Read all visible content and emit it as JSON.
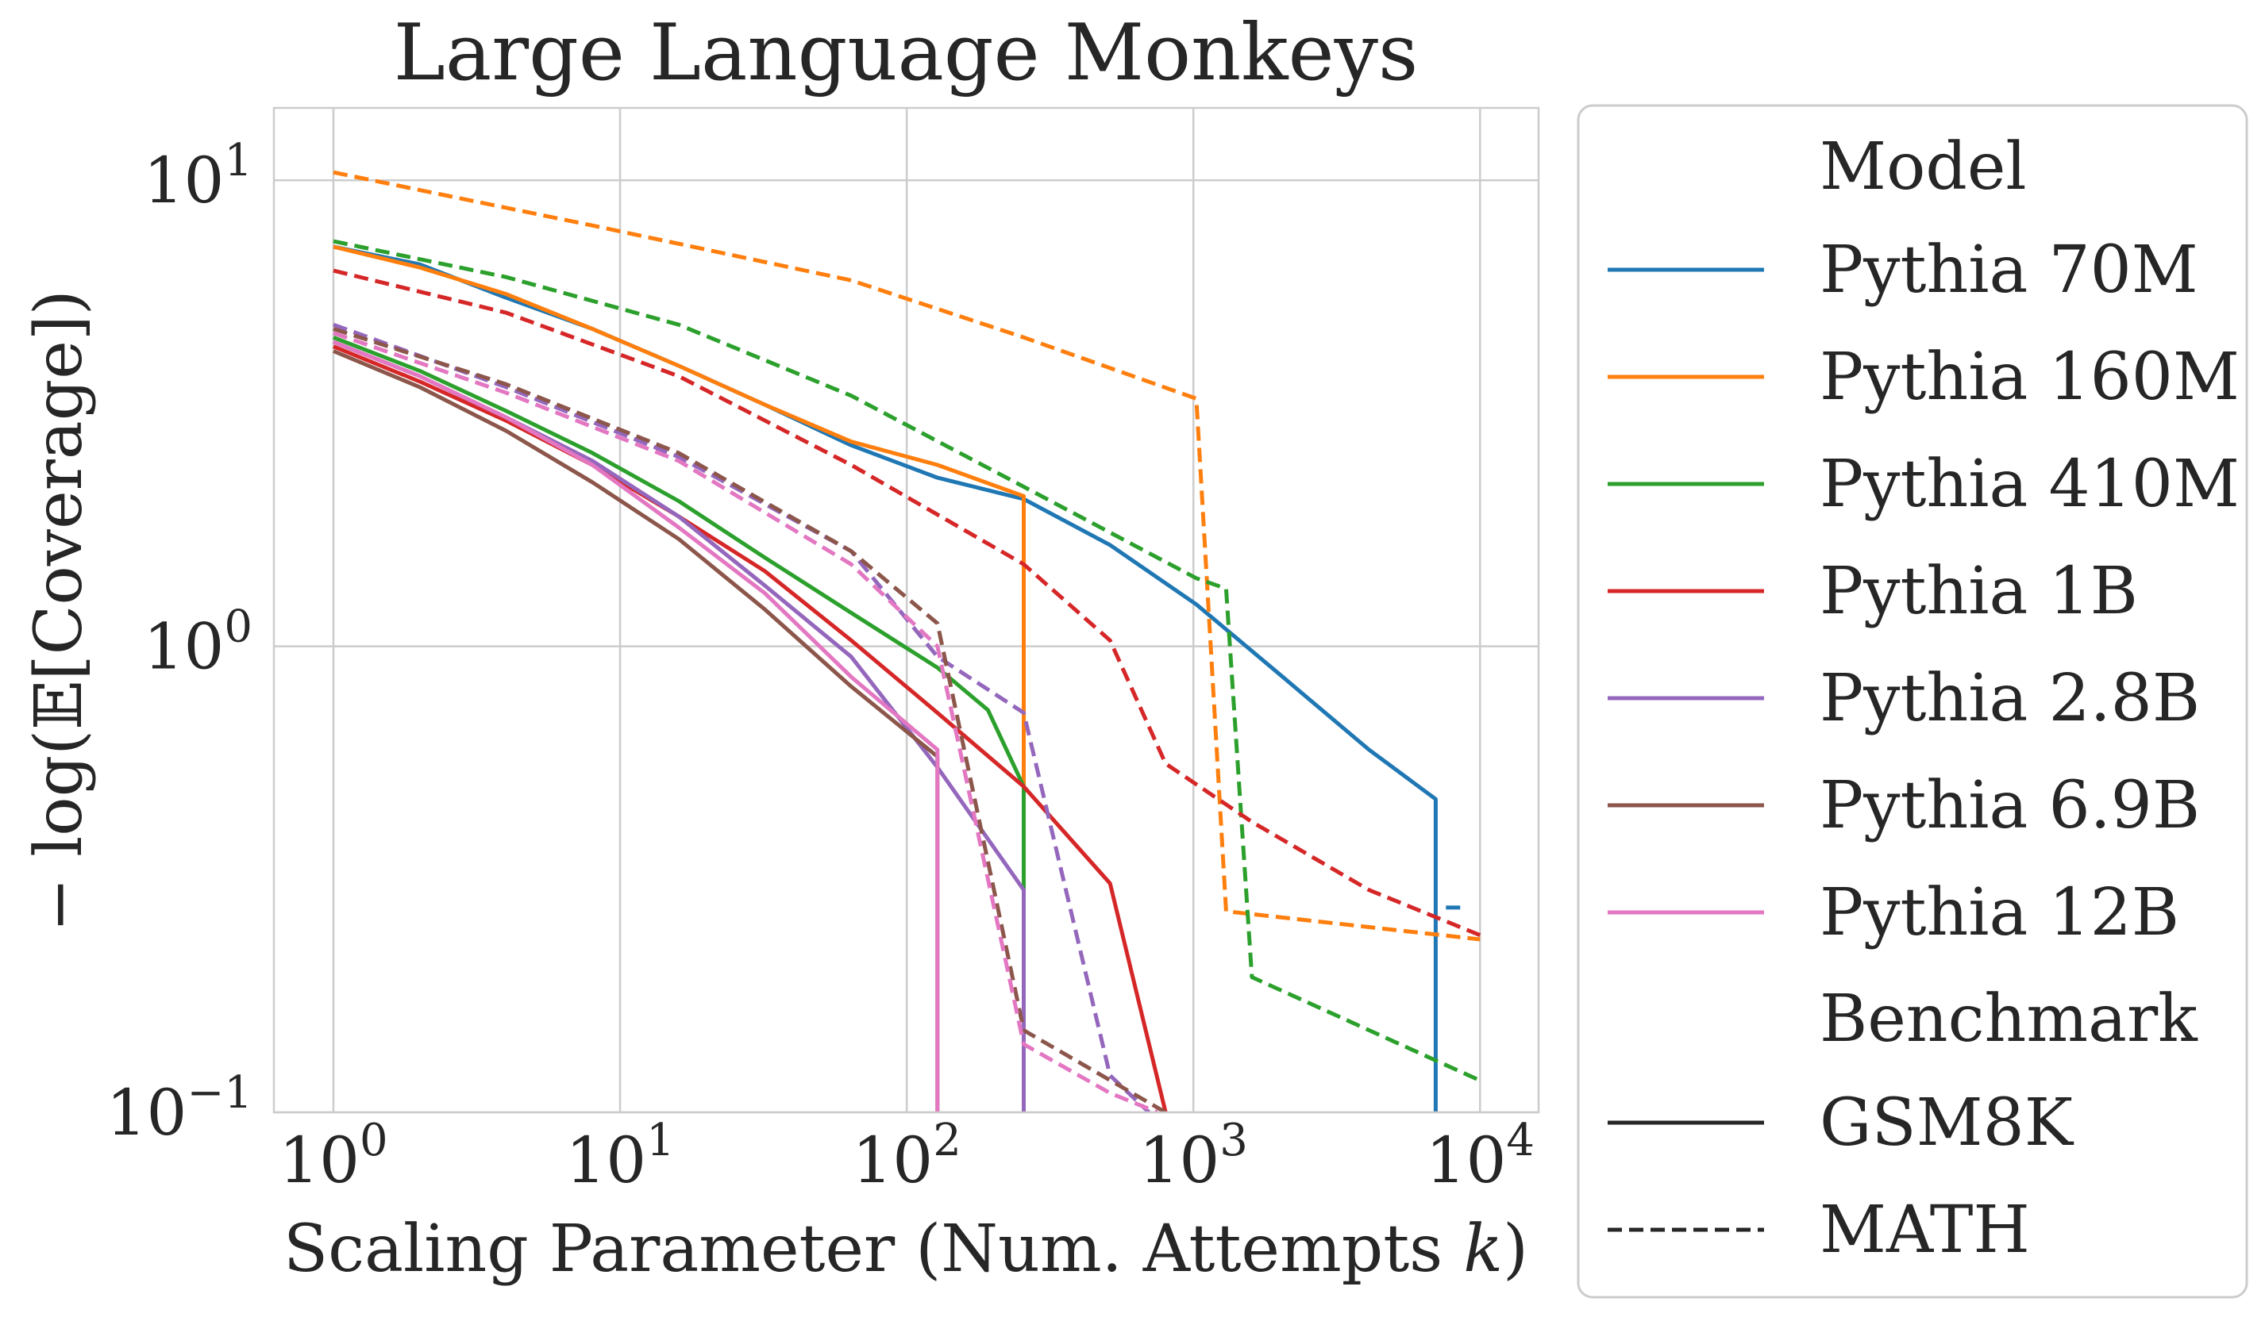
{
  "chart_data": {
    "type": "line",
    "title": "Large Language Monkeys",
    "xlabel": "Scaling Parameter (Num. Attempts k)",
    "xlabel_parts": {
      "main": "Scaling Parameter (Num. Attempts ",
      "var": "k",
      "close": ")"
    },
    "ylabel": "− log(𝔼[Coverage])",
    "xscale": "log",
    "yscale": "log",
    "xlim": [
      0.62,
      16000
    ],
    "ylim": [
      0.1,
      14.3
    ],
    "x_ticks": [
      {
        "value": 1,
        "base": "10",
        "exp": "0"
      },
      {
        "value": 10,
        "base": "10",
        "exp": "1"
      },
      {
        "value": 100,
        "base": "10",
        "exp": "2"
      },
      {
        "value": 1000,
        "base": "10",
        "exp": "3"
      },
      {
        "value": 10000,
        "base": "10",
        "exp": "4"
      }
    ],
    "y_ticks": [
      {
        "value": 0.1,
        "base": "10",
        "exp": "−1"
      },
      {
        "value": 1,
        "base": "10",
        "exp": "0"
      },
      {
        "value": 10,
        "base": "10",
        "exp": "1"
      }
    ],
    "grid": true,
    "legend_position": "outside-right",
    "legend": {
      "model_header": "Model",
      "benchmark_header": "Benchmark",
      "benchmarks": [
        {
          "name": "GSM8K",
          "style": "solid"
        },
        {
          "name": "MATH",
          "style": "dashed"
        }
      ]
    },
    "series": [
      {
        "model": "Pythia 70M",
        "color": "#1f77b4",
        "benchmark": "GSM8K",
        "points": [
          [
            1,
            7.2
          ],
          [
            2,
            6.6
          ],
          [
            4,
            5.6
          ],
          [
            8,
            4.8
          ],
          [
            16,
            4.0
          ],
          [
            32,
            3.3
          ],
          [
            64,
            2.7
          ],
          [
            128,
            2.3
          ],
          [
            256,
            2.07
          ],
          [
            512,
            1.65
          ],
          [
            1024,
            1.23
          ],
          [
            2048,
            0.86
          ],
          [
            4096,
            0.6
          ],
          [
            7000,
            0.47
          ],
          [
            7000,
            0.1
          ]
        ]
      },
      {
        "model": "Pythia 70M",
        "color": "#1f77b4",
        "benchmark": "MATH",
        "points": [
          [
            7600,
            0.275
          ],
          [
            8800,
            0.275
          ]
        ]
      },
      {
        "model": "Pythia 160M",
        "color": "#ff7f0e",
        "benchmark": "GSM8K",
        "points": [
          [
            1,
            7.2
          ],
          [
            2,
            6.5
          ],
          [
            4,
            5.7
          ],
          [
            8,
            4.8
          ],
          [
            16,
            4.0
          ],
          [
            32,
            3.3
          ],
          [
            64,
            2.75
          ],
          [
            128,
            2.45
          ],
          [
            256,
            2.1
          ],
          [
            256,
            0.1
          ]
        ]
      },
      {
        "model": "Pythia 160M",
        "color": "#ff7f0e",
        "benchmark": "MATH",
        "points": [
          [
            1,
            10.4
          ],
          [
            8,
            8.0
          ],
          [
            64,
            6.1
          ],
          [
            256,
            4.6
          ],
          [
            1024,
            3.4
          ],
          [
            1300,
            0.27
          ],
          [
            10000,
            0.235
          ]
        ]
      },
      {
        "model": "Pythia 410M",
        "color": "#2ca02c",
        "benchmark": "GSM8K",
        "points": [
          [
            1,
            4.6
          ],
          [
            2,
            3.9
          ],
          [
            4,
            3.2
          ],
          [
            8,
            2.6
          ],
          [
            16,
            2.05
          ],
          [
            32,
            1.55
          ],
          [
            64,
            1.18
          ],
          [
            128,
            0.9
          ],
          [
            192,
            0.73
          ],
          [
            256,
            0.5
          ],
          [
            256,
            0.1
          ]
        ]
      },
      {
        "model": "Pythia 410M",
        "color": "#2ca02c",
        "benchmark": "MATH",
        "points": [
          [
            1,
            7.4
          ],
          [
            4,
            6.2
          ],
          [
            16,
            4.9
          ],
          [
            64,
            3.45
          ],
          [
            256,
            2.2
          ],
          [
            1024,
            1.4
          ],
          [
            1300,
            1.33
          ],
          [
            1600,
            0.195
          ],
          [
            10000,
            0.117
          ]
        ]
      },
      {
        "model": "Pythia 1B",
        "color": "#d62728",
        "benchmark": "GSM8K",
        "points": [
          [
            1,
            4.4
          ],
          [
            2,
            3.7
          ],
          [
            4,
            3.05
          ],
          [
            8,
            2.45
          ],
          [
            16,
            1.9
          ],
          [
            32,
            1.45
          ],
          [
            64,
            1.03
          ],
          [
            128,
            0.72
          ],
          [
            256,
            0.5
          ],
          [
            512,
            0.31
          ],
          [
            800,
            0.1
          ]
        ]
      },
      {
        "model": "Pythia 1B",
        "color": "#d62728",
        "benchmark": "MATH",
        "points": [
          [
            1,
            6.4
          ],
          [
            4,
            5.2
          ],
          [
            16,
            3.8
          ],
          [
            64,
            2.45
          ],
          [
            256,
            1.5
          ],
          [
            512,
            1.03
          ],
          [
            800,
            0.56
          ],
          [
            1600,
            0.42
          ],
          [
            4096,
            0.3
          ],
          [
            10000,
            0.24
          ]
        ]
      },
      {
        "model": "Pythia 2.8B",
        "color": "#9467bd",
        "benchmark": "GSM8K",
        "points": [
          [
            1,
            4.5
          ],
          [
            2,
            3.8
          ],
          [
            4,
            3.1
          ],
          [
            8,
            2.5
          ],
          [
            16,
            1.9
          ],
          [
            32,
            1.35
          ],
          [
            64,
            0.95
          ],
          [
            128,
            0.55
          ],
          [
            256,
            0.3
          ],
          [
            256,
            0.1
          ]
        ]
      },
      {
        "model": "Pythia 2.8B",
        "color": "#9467bd",
        "benchmark": "MATH",
        "points": [
          [
            1,
            4.9
          ],
          [
            4,
            3.6
          ],
          [
            16,
            2.55
          ],
          [
            64,
            1.6
          ],
          [
            128,
            0.95
          ],
          [
            256,
            0.72
          ],
          [
            512,
            0.12
          ],
          [
            700,
            0.1
          ]
        ]
      },
      {
        "model": "Pythia 6.9B",
        "color": "#8c564b",
        "benchmark": "GSM8K",
        "points": [
          [
            1,
            4.3
          ],
          [
            2,
            3.6
          ],
          [
            4,
            2.9
          ],
          [
            8,
            2.25
          ],
          [
            16,
            1.7
          ],
          [
            32,
            1.2
          ],
          [
            64,
            0.82
          ],
          [
            128,
            0.58
          ],
          [
            128,
            0.1
          ]
        ]
      },
      {
        "model": "Pythia 6.9B",
        "color": "#8c564b",
        "benchmark": "MATH",
        "points": [
          [
            1,
            4.8
          ],
          [
            4,
            3.65
          ],
          [
            16,
            2.6
          ],
          [
            64,
            1.6
          ],
          [
            128,
            1.12
          ],
          [
            256,
            0.15
          ],
          [
            800,
            0.1
          ]
        ]
      },
      {
        "model": "Pythia 12B",
        "color": "#e377c2",
        "benchmark": "GSM8K",
        "points": [
          [
            1,
            4.5
          ],
          [
            2,
            3.8
          ],
          [
            4,
            3.1
          ],
          [
            8,
            2.45
          ],
          [
            16,
            1.8
          ],
          [
            32,
            1.3
          ],
          [
            64,
            0.86
          ],
          [
            128,
            0.6
          ],
          [
            128,
            0.1
          ]
        ]
      },
      {
        "model": "Pythia 12B",
        "color": "#e377c2",
        "benchmark": "MATH",
        "points": [
          [
            1,
            4.7
          ],
          [
            4,
            3.5
          ],
          [
            16,
            2.5
          ],
          [
            64,
            1.5
          ],
          [
            128,
            1.0
          ],
          [
            256,
            0.14
          ],
          [
            512,
            0.11
          ],
          [
            750,
            0.1
          ]
        ]
      }
    ],
    "models": [
      {
        "name": "Pythia 70M",
        "color": "#1f77b4"
      },
      {
        "name": "Pythia 160M",
        "color": "#ff7f0e"
      },
      {
        "name": "Pythia 410M",
        "color": "#2ca02c"
      },
      {
        "name": "Pythia 1B",
        "color": "#d62728"
      },
      {
        "name": "Pythia 2.8B",
        "color": "#9467bd"
      },
      {
        "name": "Pythia 6.9B",
        "color": "#8c564b"
      },
      {
        "name": "Pythia 12B",
        "color": "#e377c2"
      }
    ]
  }
}
